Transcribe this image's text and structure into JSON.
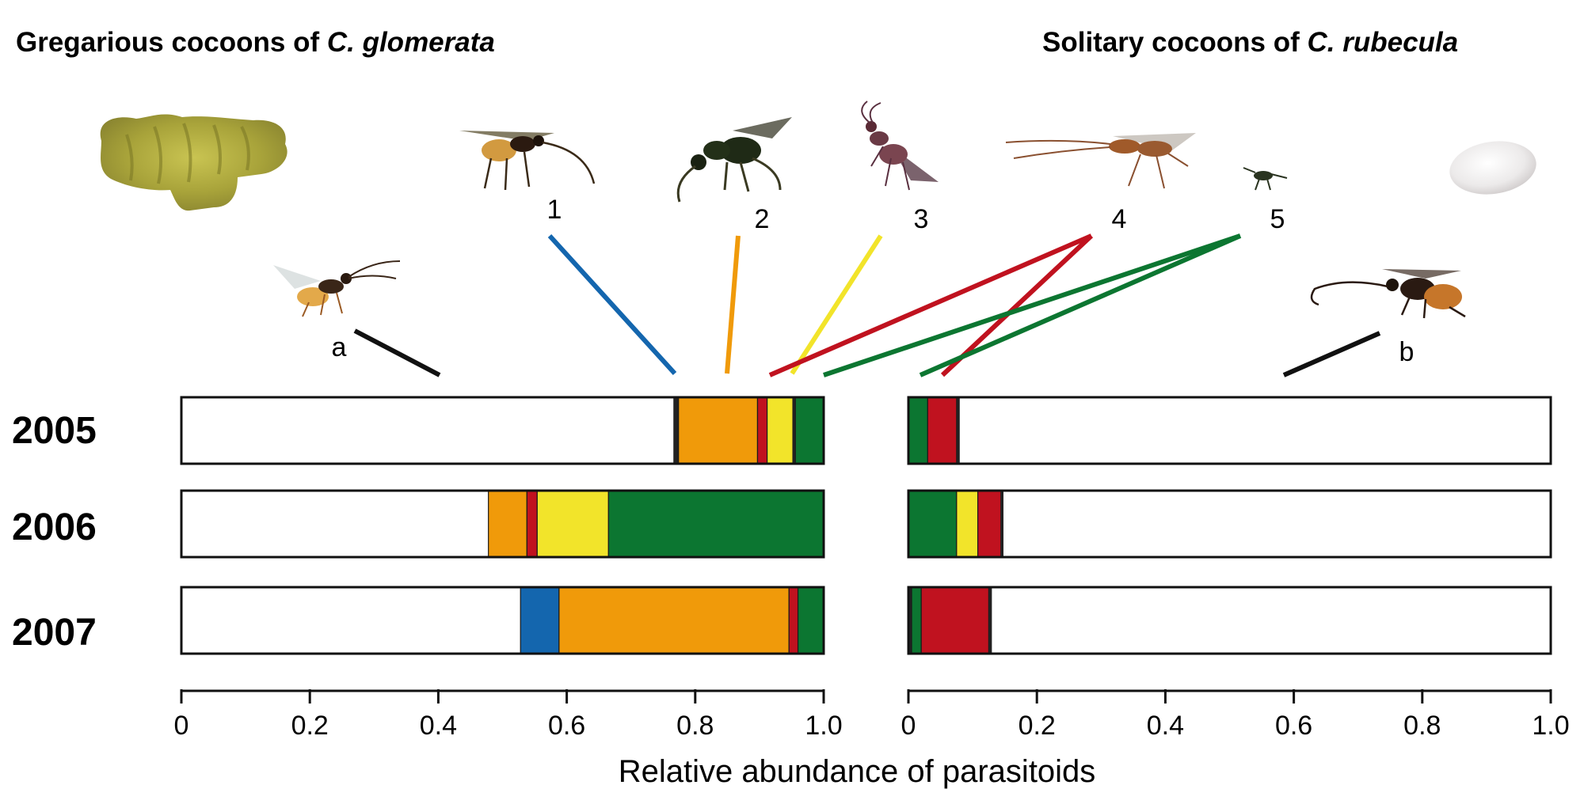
{
  "titles": {
    "left_prefix": "Gregarious cocoons of ",
    "left_species": "C. glomerata",
    "right_prefix": "Solitary cocoons of ",
    "right_species": "C. rubecula"
  },
  "colors": {
    "a": "#ffffff",
    "b": "#ffffff",
    "1": "#1466ae",
    "2": "#f09a0a",
    "3": "#f2e42a",
    "4": "#c0121f",
    "5": "#0c7631",
    "thin_black": "#222222"
  },
  "specimen_labels": [
    "a",
    "1",
    "2",
    "3",
    "4",
    "5",
    "b"
  ],
  "chart_data": [
    {
      "type": "bar",
      "orientation": "horizontal-stacked",
      "panel": "Gregarious cocoons of C. glomerata",
      "categories": [
        "2005",
        "2006",
        "2007"
      ],
      "xlabel": "Relative abundance of parasitoids",
      "xlim": [
        0,
        1.0
      ],
      "ticks": [
        "0",
        "0.2",
        "0.4",
        "0.6",
        "0.8",
        "1.0"
      ],
      "stacks": [
        [
          {
            "taxon": "a",
            "value": 0.766
          },
          {
            "taxon": "thin",
            "value": 0.008
          },
          {
            "taxon": "2",
            "value": 0.123
          },
          {
            "taxon": "4",
            "value": 0.015
          },
          {
            "taxon": "3",
            "value": 0.04
          },
          {
            "taxon": "thin",
            "value": 0.004
          },
          {
            "taxon": "5",
            "value": 0.044
          }
        ],
        [
          {
            "taxon": "a",
            "value": 0.478
          },
          {
            "taxon": "2",
            "value": 0.06
          },
          {
            "taxon": "4",
            "value": 0.016
          },
          {
            "taxon": "3",
            "value": 0.111
          },
          {
            "taxon": "5",
            "value": 0.335
          }
        ],
        [
          {
            "taxon": "a",
            "value": 0.528
          },
          {
            "taxon": "1",
            "value": 0.06
          },
          {
            "taxon": "2",
            "value": 0.358
          },
          {
            "taxon": "4",
            "value": 0.014
          },
          {
            "taxon": "5",
            "value": 0.04
          }
        ]
      ]
    },
    {
      "type": "bar",
      "orientation": "horizontal-stacked",
      "panel": "Solitary cocoons of C. rubecula",
      "categories": [
        "2005",
        "2006",
        "2007"
      ],
      "xlabel": "Relative abundance of parasitoids",
      "xlim": [
        0,
        1.0
      ],
      "ticks": [
        "0",
        "0.2",
        "0.4",
        "0.6",
        "0.8",
        "1.0"
      ],
      "stacks": [
        [
          {
            "taxon": "5",
            "value": 0.03
          },
          {
            "taxon": "4",
            "value": 0.045
          },
          {
            "taxon": "thin",
            "value": 0.005
          },
          {
            "taxon": "b",
            "value": 0.92
          }
        ],
        [
          {
            "taxon": "5",
            "value": 0.075
          },
          {
            "taxon": "3",
            "value": 0.033
          },
          {
            "taxon": "4",
            "value": 0.036
          },
          {
            "taxon": "thin",
            "value": 0.004
          },
          {
            "taxon": "b",
            "value": 0.852
          }
        ],
        [
          {
            "taxon": "thin",
            "value": 0.005
          },
          {
            "taxon": "5",
            "value": 0.015
          },
          {
            "taxon": "4",
            "value": 0.105
          },
          {
            "taxon": "thin",
            "value": 0.005
          },
          {
            "taxon": "b",
            "value": 0.87
          }
        ]
      ]
    }
  ]
}
